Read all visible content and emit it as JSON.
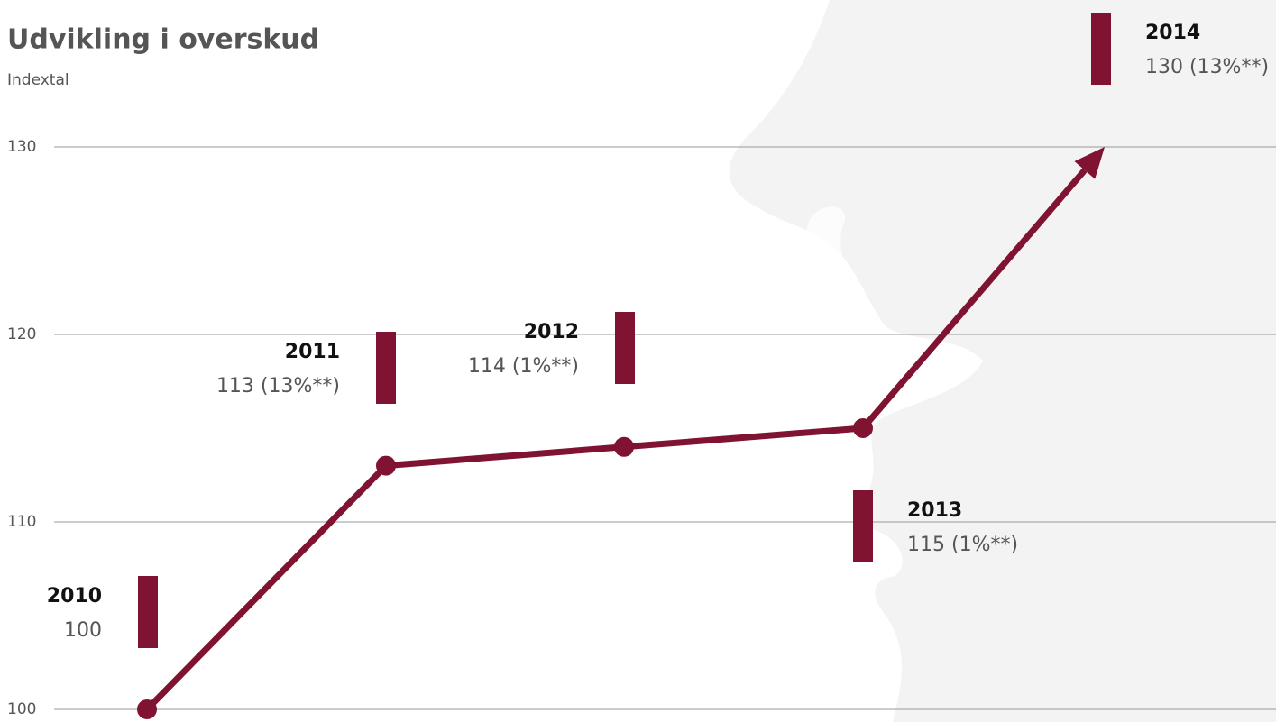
{
  "chart_data": {
    "type": "line",
    "title": "Udvikling i overskud",
    "subtitle": "Indextal",
    "categories": [
      "2010",
      "2011",
      "2012",
      "2013",
      "2014"
    ],
    "values": [
      100,
      113,
      114,
      115,
      130
    ],
    "value_labels": [
      "100",
      "113 (13%**)",
      "114 (1%**)",
      "115 (1%**)",
      "130 (13%**)"
    ],
    "color": "#7f1331",
    "ylim": [
      100,
      130
    ],
    "yticks": [
      100,
      110,
      120,
      130
    ],
    "grid": true
  }
}
